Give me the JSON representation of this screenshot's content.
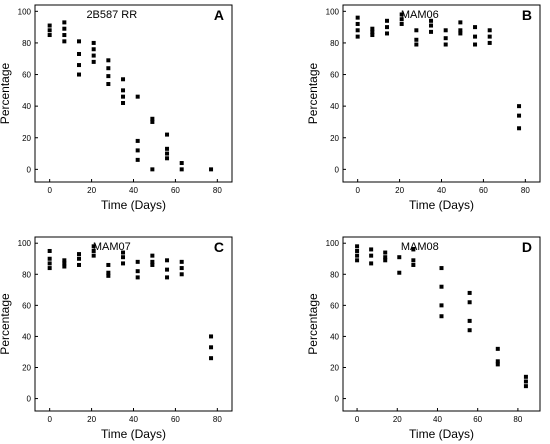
{
  "chart_data": [
    {
      "type": "scatter",
      "title": "2B587 RR",
      "panel_letter": "A",
      "xlabel": "Time (Days)",
      "ylabel": "Percentage",
      "xlim": [
        -7,
        87
      ],
      "ylim": [
        -8,
        104
      ],
      "xticks": [
        0,
        20,
        40,
        60,
        80
      ],
      "yticks": [
        0,
        20,
        40,
        60,
        80,
        100
      ],
      "grid": false,
      "series": [
        {
          "points": [
            [
              0,
              91
            ],
            [
              0,
              88
            ],
            [
              0,
              85
            ],
            [
              7,
              93
            ],
            [
              7,
              89
            ],
            [
              7,
              85
            ],
            [
              7,
              81
            ],
            [
              14,
              81
            ],
            [
              14,
              73
            ],
            [
              14,
              66
            ],
            [
              14,
              60
            ],
            [
              21,
              80
            ],
            [
              21,
              76
            ],
            [
              21,
              72
            ],
            [
              21,
              68
            ],
            [
              28,
              69
            ],
            [
              28,
              64
            ],
            [
              28,
              59
            ],
            [
              28,
              54
            ],
            [
              35,
              57
            ],
            [
              35,
              50
            ],
            [
              35,
              46
            ],
            [
              35,
              42
            ],
            [
              42,
              46
            ],
            [
              42,
              18
            ],
            [
              42,
              12
            ],
            [
              42,
              6
            ],
            [
              49,
              32
            ],
            [
              49,
              30
            ],
            [
              49,
              0
            ],
            [
              56,
              22
            ],
            [
              56,
              13
            ],
            [
              56,
              10
            ],
            [
              56,
              7
            ],
            [
              63,
              4
            ],
            [
              63,
              0
            ],
            [
              77,
              0
            ]
          ]
        }
      ]
    },
    {
      "type": "scatter",
      "title": "MAM06",
      "panel_letter": "B",
      "xlabel": "Time (Days)",
      "ylabel": "Percentage",
      "xlim": [
        -7,
        87
      ],
      "ylim": [
        -8,
        104
      ],
      "xticks": [
        0,
        20,
        40,
        60,
        80
      ],
      "yticks": [
        0,
        20,
        40,
        60,
        80,
        100
      ],
      "grid": false,
      "series": [
        {
          "points": [
            [
              0,
              96
            ],
            [
              0,
              92
            ],
            [
              0,
              88
            ],
            [
              0,
              84
            ],
            [
              7,
              89
            ],
            [
              7,
              87
            ],
            [
              7,
              85
            ],
            [
              14,
              94
            ],
            [
              14,
              90
            ],
            [
              14,
              86
            ],
            [
              21,
              98
            ],
            [
              21,
              95
            ],
            [
              21,
              92
            ],
            [
              28,
              88
            ],
            [
              28,
              82
            ],
            [
              28,
              79
            ],
            [
              35,
              94
            ],
            [
              35,
              91
            ],
            [
              35,
              87
            ],
            [
              42,
              88
            ],
            [
              42,
              83
            ],
            [
              42,
              79
            ],
            [
              49,
              93
            ],
            [
              49,
              88
            ],
            [
              49,
              86
            ],
            [
              56,
              90
            ],
            [
              56,
              84
            ],
            [
              56,
              79
            ],
            [
              63,
              88
            ],
            [
              63,
              84
            ],
            [
              63,
              80
            ],
            [
              77,
              40
            ],
            [
              77,
              34
            ],
            [
              77,
              26
            ]
          ]
        }
      ]
    },
    {
      "type": "scatter",
      "title": "MAM07",
      "panel_letter": "C",
      "xlabel": "Time (Days)",
      "ylabel": "Percentage",
      "xlim": [
        -7,
        87
      ],
      "ylim": [
        -8,
        104
      ],
      "xticks": [
        0,
        20,
        40,
        60,
        80
      ],
      "yticks": [
        0,
        20,
        40,
        60,
        80,
        100
      ],
      "grid": false,
      "series": [
        {
          "points": [
            [
              0,
              95
            ],
            [
              0,
              90
            ],
            [
              0,
              87
            ],
            [
              0,
              84
            ],
            [
              7,
              89
            ],
            [
              7,
              87
            ],
            [
              7,
              85
            ],
            [
              14,
              93
            ],
            [
              14,
              90
            ],
            [
              14,
              86
            ],
            [
              21,
              98
            ],
            [
              21,
              95
            ],
            [
              21,
              92
            ],
            [
              28,
              86
            ],
            [
              28,
              81
            ],
            [
              28,
              79
            ],
            [
              35,
              94
            ],
            [
              35,
              91
            ],
            [
              35,
              87
            ],
            [
              42,
              88
            ],
            [
              42,
              82
            ],
            [
              42,
              78
            ],
            [
              49,
              92
            ],
            [
              49,
              88
            ],
            [
              49,
              86
            ],
            [
              56,
              89
            ],
            [
              56,
              83
            ],
            [
              56,
              78
            ],
            [
              63,
              88
            ],
            [
              63,
              84
            ],
            [
              63,
              80
            ],
            [
              77,
              40
            ],
            [
              77,
              33
            ],
            [
              77,
              26
            ]
          ]
        }
      ]
    },
    {
      "type": "scatter",
      "title": "MAM08",
      "panel_letter": "D",
      "xlabel": "Time (Days)",
      "ylabel": "Percentage",
      "xlim": [
        -7,
        91
      ],
      "ylim": [
        -8,
        104
      ],
      "xticks": [
        0,
        20,
        40,
        60,
        80
      ],
      "yticks": [
        0,
        20,
        40,
        60,
        80,
        100
      ],
      "grid": false,
      "series": [
        {
          "points": [
            [
              0,
              98
            ],
            [
              0,
              95
            ],
            [
              0,
              92
            ],
            [
              0,
              89
            ],
            [
              7,
              96
            ],
            [
              7,
              92
            ],
            [
              7,
              87
            ],
            [
              14,
              94
            ],
            [
              14,
              91
            ],
            [
              14,
              89
            ],
            [
              21,
              91
            ],
            [
              21,
              81
            ],
            [
              28,
              96
            ],
            [
              28,
              89
            ],
            [
              28,
              86
            ],
            [
              42,
              84
            ],
            [
              42,
              72
            ],
            [
              42,
              60
            ],
            [
              42,
              53
            ],
            [
              56,
              68
            ],
            [
              56,
              62
            ],
            [
              56,
              50
            ],
            [
              56,
              44
            ],
            [
              70,
              32
            ],
            [
              70,
              24
            ],
            [
              70,
              22
            ],
            [
              84,
              14
            ],
            [
              84,
              11
            ],
            [
              84,
              8
            ]
          ]
        }
      ]
    }
  ]
}
